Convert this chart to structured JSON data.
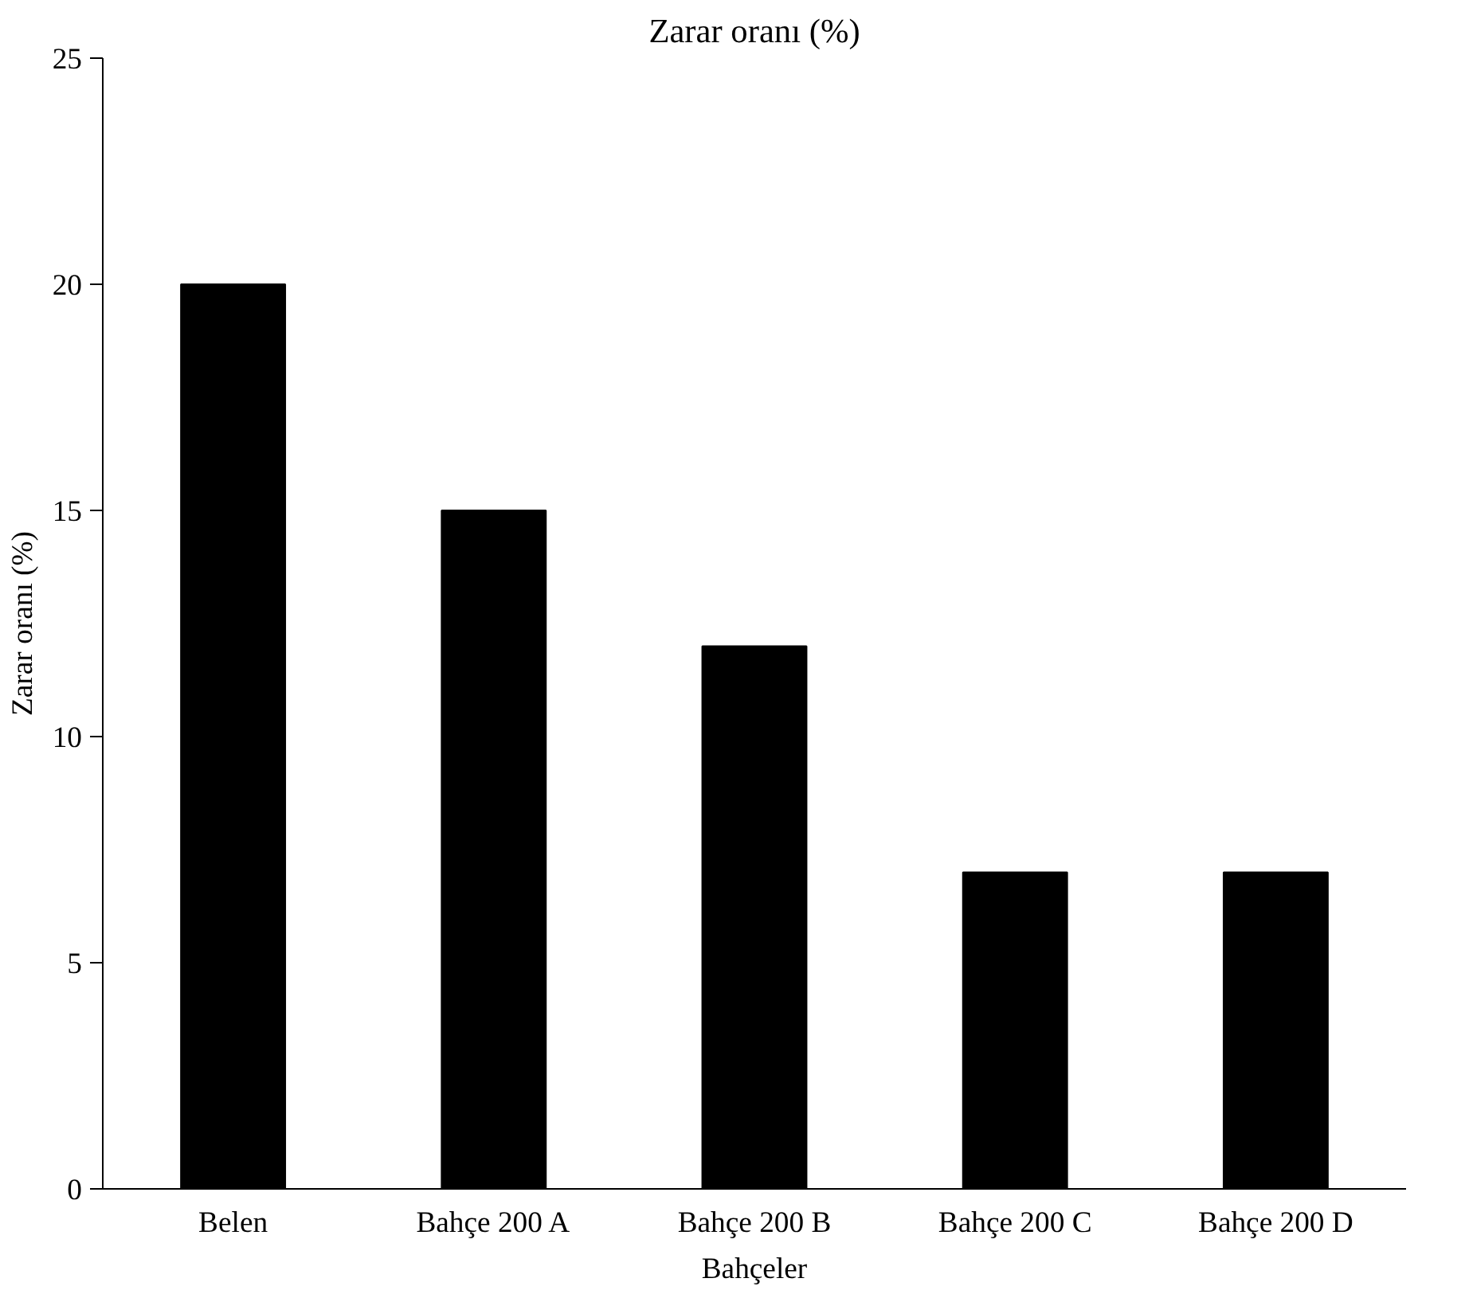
{
  "chart_data": {
    "type": "bar",
    "title": "Zarar oranı (%)",
    "xlabel": "Bahçeler",
    "ylabel": "Zarar oranı (%)",
    "categories": [
      "Belen",
      "Bahçe 200 A",
      "Bahçe 200 B",
      "Bahçe 200 C",
      "Bahçe 200 D"
    ],
    "values": [
      20,
      15,
      12,
      7,
      7
    ],
    "color": "#000000",
    "ylim": [
      0,
      25
    ],
    "yticks": [
      0,
      5,
      10,
      15,
      20,
      25
    ],
    "grid": false
  }
}
